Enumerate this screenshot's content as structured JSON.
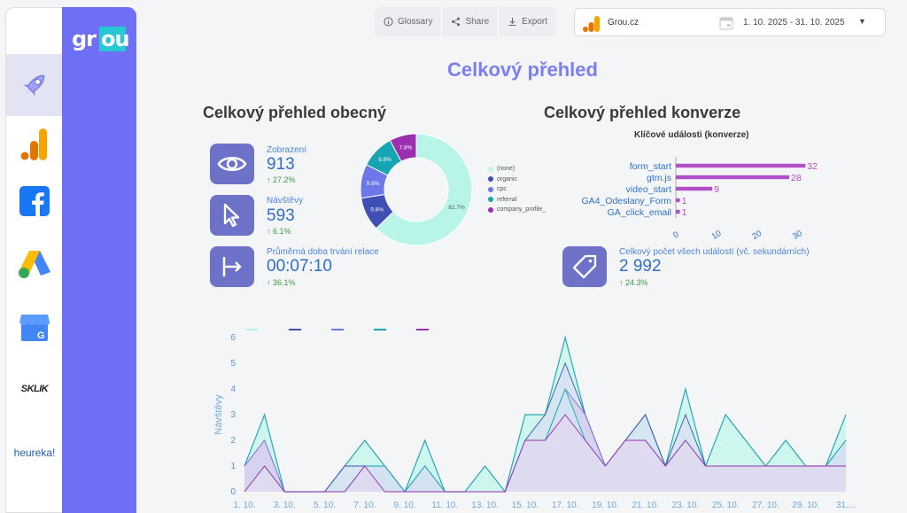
{
  "logo": {
    "left": "gr",
    "right": "ou"
  },
  "rail": {
    "items": [
      {
        "name": "rocket"
      },
      {
        "name": "analytics"
      },
      {
        "name": "facebook"
      },
      {
        "name": "google-ads"
      },
      {
        "name": "google-business"
      },
      {
        "name": "sklik",
        "label": "SKLIK"
      },
      {
        "name": "heureka",
        "label": "heureka!"
      }
    ]
  },
  "toolbar": {
    "glossary": "Glossary",
    "share": "Share",
    "export": "Export"
  },
  "property": {
    "site": "Grou.cz",
    "date_range": "1. 10. 2025 - 31. 10. 2025"
  },
  "page_title": "Celkový přehled",
  "general": {
    "title": "Celkový přehled obecný",
    "kpis": [
      {
        "label": "Zobrazení",
        "value": "913",
        "delta": "27.2%"
      },
      {
        "label": "Návštěvy",
        "value": "593",
        "delta": "6.1%"
      },
      {
        "label": "Průměrná doba trvání relace",
        "value": "00:07:10",
        "delta": "36.1%"
      }
    ]
  },
  "conversions": {
    "title": "Celkový přehled konverze",
    "chart_title": "Klíčové události (konverze)",
    "total_label": "Celkový počet všech událostí (vč. sekundárních)",
    "total_value": "2 992",
    "total_delta": "24.3%"
  },
  "colors": {
    "accent": "#6e6ff5",
    "title": "#7b7ff0",
    "kpi_icon": "#6d72c8",
    "bar": "#b04fc8",
    "none": "#b8f5e8",
    "organic": "#3f4fb3",
    "cpc": "#6d77e8",
    "referral": "#17a5b3",
    "company_profile": "#9b2fb0"
  },
  "chart_data": [
    {
      "type": "pie",
      "categories": [
        "(none)",
        "organic",
        "cpc",
        "referral",
        "company_profile_"
      ],
      "values": [
        62.7,
        9.8,
        9.8,
        9.8,
        7.8
      ],
      "labels": [
        "62.7%",
        "9.8%",
        "9.8%",
        "9.8%",
        "7.8%"
      ]
    },
    {
      "type": "bar",
      "orientation": "horizontal",
      "title": "Klíčové události (konverze)",
      "categories": [
        "form_start",
        "gtm.js",
        "video_start",
        "GA4_Odeslany_Form",
        "GA_click_email"
      ],
      "values": [
        32,
        28,
        9,
        1,
        1
      ],
      "xticks": [
        0,
        10,
        20,
        30
      ],
      "xlim": [
        0,
        35
      ]
    },
    {
      "type": "area",
      "ylabel": "Návštěvy",
      "ylim": [
        0,
        6
      ],
      "yticks": [
        0,
        1,
        2,
        3,
        4,
        5,
        6
      ],
      "x": [
        "1. 10.",
        "2. 10.",
        "3. 10.",
        "4. 10.",
        "5. 10.",
        "6. 10.",
        "7. 10.",
        "8. 10.",
        "9. 10.",
        "10. 10.",
        "11. 10.",
        "12. 10.",
        "13. 10.",
        "14. 10.",
        "15. 10.",
        "16. 10.",
        "17. 10.",
        "18. 10.",
        "19. 10.",
        "20. 10.",
        "21. 10.",
        "22. 10.",
        "23. 10.",
        "24. 10.",
        "25. 10.",
        "26. 10.",
        "27. 10.",
        "28. 10.",
        "29. 10.",
        "30. 10.",
        "31. 10."
      ],
      "xtick_labels": [
        "1. 10.",
        "3. 10.",
        "5. 10.",
        "7. 10.",
        "9. 10.",
        "11. 10.",
        "13. 10.",
        "15. 10.",
        "17. 10.",
        "19. 10.",
        "21. 10.",
        "23. 10.",
        "25. 10.",
        "27. 10.",
        "29. 10.",
        "31...."
      ],
      "series": [
        {
          "name": "(none)",
          "values": [
            1,
            3,
            0,
            0,
            0,
            1,
            2,
            1,
            0,
            2,
            0,
            0,
            1,
            0,
            3,
            3,
            6,
            3,
            1,
            2,
            3,
            1,
            4,
            1,
            3,
            2,
            1,
            2,
            1,
            1,
            3
          ]
        },
        {
          "name": "organic",
          "values": [
            1,
            2,
            0,
            0,
            0,
            1,
            1,
            1,
            0,
            1,
            0,
            0,
            0,
            0,
            2,
            3,
            5,
            3,
            1,
            2,
            3,
            1,
            3,
            1,
            1,
            1,
            1,
            1,
            1,
            1,
            2
          ]
        },
        {
          "name": "cpc",
          "values": [
            1,
            2,
            0,
            0,
            0,
            0,
            1,
            1,
            0,
            1,
            0,
            0,
            0,
            0,
            2,
            2,
            4,
            3,
            1,
            2,
            2,
            1,
            2,
            1,
            1,
            1,
            1,
            1,
            1,
            1,
            2
          ]
        },
        {
          "name": "referral",
          "values": [
            0,
            1,
            0,
            0,
            0,
            0,
            1,
            1,
            0,
            1,
            0,
            0,
            0,
            0,
            2,
            2,
            4,
            2,
            1,
            2,
            2,
            1,
            2,
            1,
            1,
            1,
            1,
            1,
            1,
            1,
            2
          ]
        },
        {
          "name": "company_profile_",
          "values": [
            0,
            1,
            0,
            0,
            0,
            0,
            1,
            0,
            0,
            0,
            0,
            0,
            0,
            0,
            2,
            2,
            3,
            2,
            1,
            2,
            2,
            1,
            2,
            1,
            1,
            1,
            1,
            1,
            1,
            1,
            1
          ]
        }
      ]
    }
  ]
}
